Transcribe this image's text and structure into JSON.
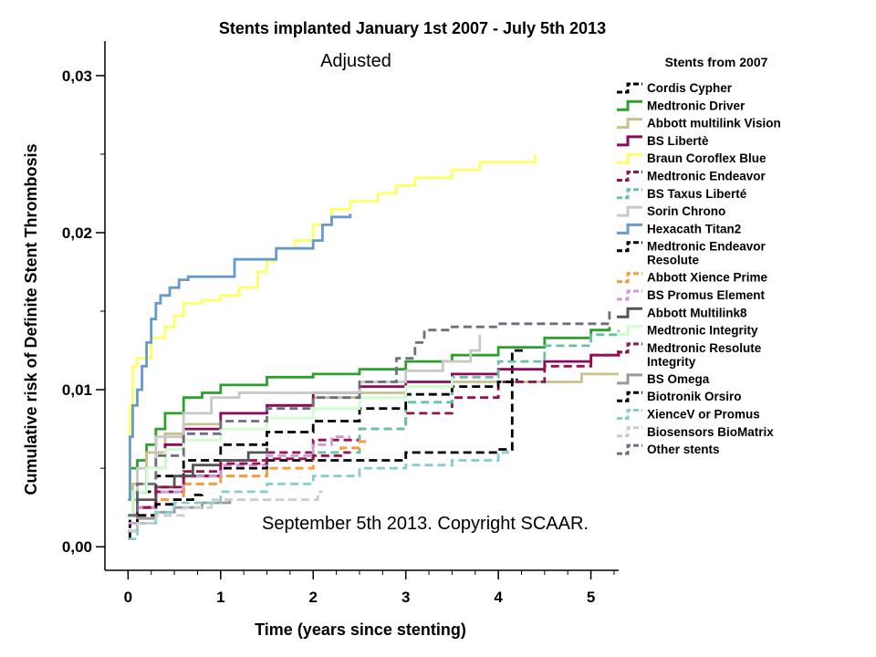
{
  "chart_data": {
    "type": "line",
    "title": "Stents implanted January 1st 2007 - July 5th 2013",
    "xlabel": "Time (years since stenting)",
    "ylabel": "Cumulative risk of Definite Stent Thrombosis",
    "annotation_top": "Adjusted",
    "annotation_bottom": "September 5th 2013. Copyright SCAAR.",
    "xlim": [
      -0.25,
      5.3
    ],
    "ylim": [
      -0.0015,
      0.0322
    ],
    "x_ticks": [
      {
        "v": 0,
        "label": "0"
      },
      {
        "v": 1,
        "label": "1"
      },
      {
        "v": 2,
        "label": "2"
      },
      {
        "v": 3,
        "label": "3"
      },
      {
        "v": 4,
        "label": "4"
      },
      {
        "v": 5,
        "label": "5"
      }
    ],
    "y_ticks": [
      {
        "v": 0.0,
        "label": "0,00"
      },
      {
        "v": 0.01,
        "label": "0,01"
      },
      {
        "v": 0.02,
        "label": "0,02"
      },
      {
        "v": 0.03,
        "label": "0,03"
      }
    ],
    "x_minor_step": 0.25,
    "y_minor_step": 0.005,
    "legend_title": "Stents from 2007",
    "legend_position": "right",
    "series": [
      {
        "name": "Cordis Cypher",
        "color": "#000000",
        "dash": true,
        "points": [
          [
            0,
            0.0005
          ],
          [
            0.02,
            0.002
          ],
          [
            0.1,
            0.0025
          ],
          [
            0.3,
            0.0035
          ],
          [
            0.6,
            0.0045
          ],
          [
            1,
            0.005
          ],
          [
            1.5,
            0.0055
          ],
          [
            2,
            0.0055
          ],
          [
            2.5,
            0.0055
          ],
          [
            3,
            0.006
          ],
          [
            3.5,
            0.006
          ],
          [
            4,
            0.0062
          ],
          [
            4.15,
            0.0062
          ],
          [
            4.15,
            0.0125
          ],
          [
            4.3,
            0.0125
          ]
        ]
      },
      {
        "name": "Medtronic Driver",
        "color": "#2ca02c",
        "dash": false,
        "points": [
          [
            0,
            0.003
          ],
          [
            0.02,
            0.005
          ],
          [
            0.1,
            0.0055
          ],
          [
            0.2,
            0.0065
          ],
          [
            0.3,
            0.0075
          ],
          [
            0.4,
            0.0085
          ],
          [
            0.6,
            0.0095
          ],
          [
            0.8,
            0.0098
          ],
          [
            1,
            0.0103
          ],
          [
            1.5,
            0.0108
          ],
          [
            2,
            0.011
          ],
          [
            2.5,
            0.0113
          ],
          [
            3,
            0.0118
          ],
          [
            3.5,
            0.0122
          ],
          [
            4,
            0.0127
          ],
          [
            4.5,
            0.0133
          ],
          [
            5,
            0.0138
          ],
          [
            5.2,
            0.014
          ]
        ]
      },
      {
        "name": "Abbott multilink Vision",
        "color": "#c8c08c",
        "dash": false,
        "points": [
          [
            0,
            0.002
          ],
          [
            0.05,
            0.004
          ],
          [
            0.2,
            0.006
          ],
          [
            0.4,
            0.0072
          ],
          [
            0.6,
            0.0078
          ],
          [
            1,
            0.0085
          ],
          [
            1.5,
            0.009
          ],
          [
            2,
            0.0095
          ],
          [
            2.5,
            0.0098
          ],
          [
            3,
            0.0102
          ],
          [
            3.5,
            0.0105
          ],
          [
            4,
            0.0105
          ],
          [
            4.5,
            0.0105
          ],
          [
            4.8,
            0.0105
          ],
          [
            4.9,
            0.011
          ],
          [
            5.3,
            0.011
          ]
        ]
      },
      {
        "name": "BS Libertè",
        "color": "#8b0a5b",
        "dash": false,
        "points": [
          [
            0,
            0.002
          ],
          [
            0.05,
            0.0035
          ],
          [
            0.2,
            0.005
          ],
          [
            0.4,
            0.0065
          ],
          [
            0.6,
            0.0075
          ],
          [
            1,
            0.0085
          ],
          [
            1.5,
            0.009
          ],
          [
            2,
            0.0098
          ],
          [
            2.5,
            0.0102
          ],
          [
            3,
            0.0105
          ],
          [
            3.5,
            0.011
          ],
          [
            4,
            0.0113
          ],
          [
            4.5,
            0.0118
          ],
          [
            5,
            0.0122
          ],
          [
            5.3,
            0.0123
          ]
        ]
      },
      {
        "name": "Braun Coroflex Blue",
        "color": "#ffff66",
        "dash": false,
        "points": [
          [
            0,
            0.0035
          ],
          [
            0.02,
            0.009
          ],
          [
            0.05,
            0.0115
          ],
          [
            0.1,
            0.012
          ],
          [
            0.2,
            0.012
          ],
          [
            0.25,
            0.0133
          ],
          [
            0.4,
            0.014
          ],
          [
            0.5,
            0.0147
          ],
          [
            0.6,
            0.0155
          ],
          [
            0.8,
            0.0157
          ],
          [
            1,
            0.016
          ],
          [
            1.2,
            0.0165
          ],
          [
            1.4,
            0.0175
          ],
          [
            1.5,
            0.0182
          ],
          [
            1.6,
            0.019
          ],
          [
            1.8,
            0.0195
          ],
          [
            2,
            0.0205
          ],
          [
            2.2,
            0.0215
          ],
          [
            2.4,
            0.022
          ],
          [
            2.7,
            0.0225
          ],
          [
            2.9,
            0.023
          ],
          [
            3.1,
            0.0235
          ],
          [
            3.5,
            0.024
          ],
          [
            3.8,
            0.0245
          ],
          [
            4.4,
            0.0245
          ],
          [
            4.4,
            0.025
          ]
        ]
      },
      {
        "name": "Medtronic Endeavor",
        "color": "#990f4f",
        "dash": true,
        "points": [
          [
            0,
            0.001
          ],
          [
            0.1,
            0.0025
          ],
          [
            0.3,
            0.0035
          ],
          [
            0.6,
            0.0045
          ],
          [
            1,
            0.0055
          ],
          [
            1.5,
            0.006
          ],
          [
            2,
            0.0068
          ],
          [
            2.5,
            0.0075
          ],
          [
            3,
            0.0085
          ],
          [
            3.5,
            0.0095
          ],
          [
            4,
            0.0105
          ],
          [
            4.5,
            0.0115
          ],
          [
            5,
            0.0122
          ],
          [
            5.3,
            0.0125
          ]
        ]
      },
      {
        "name": "BS Taxus Liberté",
        "color": "#66c2a5",
        "dash": true,
        "points": [
          [
            0,
            0.001
          ],
          [
            0.1,
            0.002
          ],
          [
            0.3,
            0.003
          ],
          [
            0.6,
            0.004
          ],
          [
            1,
            0.0045
          ],
          [
            1.5,
            0.005
          ],
          [
            2,
            0.006
          ],
          [
            2.5,
            0.0075
          ],
          [
            3,
            0.0092
          ],
          [
            3.5,
            0.0108
          ],
          [
            4,
            0.0118
          ],
          [
            4.5,
            0.0128
          ],
          [
            5,
            0.0135
          ],
          [
            5.3,
            0.0138
          ]
        ]
      },
      {
        "name": "Sorin Chrono",
        "color": "#c8c8c8",
        "dash": false,
        "points": [
          [
            0,
            0.003
          ],
          [
            0.1,
            0.005
          ],
          [
            0.3,
            0.007
          ],
          [
            0.6,
            0.0085
          ],
          [
            0.9,
            0.0095
          ],
          [
            1.2,
            0.0098
          ],
          [
            1.5,
            0.0098
          ],
          [
            2,
            0.0098
          ],
          [
            2.5,
            0.0105
          ],
          [
            3,
            0.0112
          ],
          [
            3.4,
            0.0118
          ],
          [
            3.7,
            0.0125
          ],
          [
            3.8,
            0.0135
          ]
        ]
      },
      {
        "name": "Hexacath Titan2",
        "color": "#6699cc",
        "dash": false,
        "points": [
          [
            0,
            0.003
          ],
          [
            0.02,
            0.007
          ],
          [
            0.05,
            0.009
          ],
          [
            0.1,
            0.01
          ],
          [
            0.15,
            0.0115
          ],
          [
            0.2,
            0.013
          ],
          [
            0.25,
            0.0145
          ],
          [
            0.3,
            0.0155
          ],
          [
            0.35,
            0.016
          ],
          [
            0.45,
            0.0165
          ],
          [
            0.55,
            0.017
          ],
          [
            0.65,
            0.0172
          ],
          [
            1,
            0.0172
          ],
          [
            1.15,
            0.0172
          ],
          [
            1.15,
            0.0183
          ],
          [
            1.5,
            0.0183
          ],
          [
            1.6,
            0.019
          ],
          [
            1.9,
            0.019
          ],
          [
            2,
            0.0195
          ],
          [
            2.1,
            0.0205
          ],
          [
            2.2,
            0.021
          ],
          [
            2.4,
            0.0212
          ]
        ]
      },
      {
        "name": "Medtronic Endeavor Resolute",
        "color": "#000000",
        "dash": true,
        "points": [
          [
            0,
            0.002
          ],
          [
            0.1,
            0.0035
          ],
          [
            0.3,
            0.0045
          ],
          [
            0.6,
            0.0055
          ],
          [
            1,
            0.0065
          ],
          [
            1.5,
            0.0073
          ],
          [
            2,
            0.008
          ],
          [
            2.5,
            0.0088
          ],
          [
            3,
            0.0097
          ],
          [
            3.5,
            0.0102
          ],
          [
            4,
            0.0105
          ],
          [
            4.2,
            0.0107
          ]
        ]
      },
      {
        "name": "Abbott Xience Prime",
        "color": "#ff9933",
        "dash": true,
        "points": [
          [
            0,
            0.001
          ],
          [
            0.1,
            0.002
          ],
          [
            0.3,
            0.003
          ],
          [
            0.6,
            0.004
          ],
          [
            1,
            0.0045
          ],
          [
            1.5,
            0.005
          ],
          [
            2,
            0.0058
          ],
          [
            2.3,
            0.0063
          ],
          [
            2.5,
            0.0067
          ],
          [
            2.6,
            0.0068
          ]
        ]
      },
      {
        "name": "BS Promus Element",
        "color": "#cc99dd",
        "dash": true,
        "points": [
          [
            0,
            0.0015
          ],
          [
            0.1,
            0.0025
          ],
          [
            0.3,
            0.0035
          ],
          [
            0.6,
            0.0045
          ],
          [
            1,
            0.0052
          ],
          [
            1.5,
            0.0058
          ],
          [
            2,
            0.0065
          ],
          [
            2.2,
            0.007
          ],
          [
            2.4,
            0.007
          ]
        ]
      },
      {
        "name": "Abbott Multilink8",
        "color": "#555555",
        "dash": false,
        "points": [
          [
            0,
            0.002
          ],
          [
            0.1,
            0.003
          ],
          [
            0.3,
            0.0038
          ],
          [
            0.5,
            0.0045
          ],
          [
            0.7,
            0.0052
          ],
          [
            1,
            0.0055
          ],
          [
            1.3,
            0.006
          ],
          [
            1.5,
            0.0063
          ]
        ]
      },
      {
        "name": "Medtronic Integrity",
        "color": "#ccffcc",
        "dash": false,
        "points": [
          [
            0,
            0.002
          ],
          [
            0.05,
            0.0035
          ],
          [
            0.2,
            0.005
          ],
          [
            0.4,
            0.0062
          ],
          [
            0.6,
            0.0068
          ],
          [
            1,
            0.0075
          ],
          [
            1.5,
            0.0082
          ],
          [
            2,
            0.0088
          ],
          [
            2.5,
            0.0095
          ],
          [
            3,
            0.0102
          ],
          [
            3.5,
            0.0108
          ]
        ]
      },
      {
        "name": "Medtronic Resolute Integrity",
        "color": "#990f4f",
        "dash": true,
        "points": [
          [
            0,
            0.001
          ],
          [
            0.1,
            0.0025
          ],
          [
            0.3,
            0.0038
          ],
          [
            0.6,
            0.0048
          ],
          [
            1,
            0.0053
          ],
          [
            1.5,
            0.0056
          ],
          [
            2,
            0.0058
          ],
          [
            2.3,
            0.006
          ],
          [
            2.4,
            0.006
          ]
        ]
      },
      {
        "name": "BS Omega",
        "color": "#999999",
        "dash": false,
        "points": [
          [
            0,
            0.001
          ],
          [
            0.1,
            0.0018
          ],
          [
            0.3,
            0.0022
          ],
          [
            0.5,
            0.0025
          ],
          [
            0.8,
            0.0028
          ],
          [
            1.1,
            0.003
          ]
        ]
      },
      {
        "name": "Biotronik Orsiro",
        "color": "#000000",
        "dash": true,
        "points": [
          [
            0,
            0.001
          ],
          [
            0.1,
            0.002
          ],
          [
            0.3,
            0.0027
          ],
          [
            0.5,
            0.003
          ],
          [
            0.7,
            0.0033
          ],
          [
            0.8,
            0.0035
          ]
        ]
      },
      {
        "name": "XienceV or Promus",
        "color": "#88cccc",
        "dash": true,
        "points": [
          [
            0,
            0.0005
          ],
          [
            0.1,
            0.0015
          ],
          [
            0.3,
            0.0022
          ],
          [
            0.5,
            0.0028
          ],
          [
            1,
            0.0035
          ],
          [
            1.5,
            0.004
          ],
          [
            2,
            0.0045
          ],
          [
            2.5,
            0.005
          ],
          [
            3,
            0.0052
          ],
          [
            3.5,
            0.0055
          ],
          [
            4,
            0.006
          ],
          [
            4.1,
            0.0062
          ]
        ]
      },
      {
        "name": "Biosensors BioMatrix",
        "color": "#cccccc",
        "dash": true,
        "points": [
          [
            0,
            0.001
          ],
          [
            0.1,
            0.0015
          ],
          [
            0.3,
            0.002
          ],
          [
            0.6,
            0.0025
          ],
          [
            0.9,
            0.003
          ],
          [
            1.2,
            0.003
          ],
          [
            1.5,
            0.003
          ],
          [
            2,
            0.003
          ],
          [
            2.05,
            0.0035
          ],
          [
            2.1,
            0.0035
          ]
        ]
      },
      {
        "name": "Other stents",
        "color": "#6e6e80",
        "dash": true,
        "points": [
          [
            0,
            0.002
          ],
          [
            0.1,
            0.004
          ],
          [
            0.3,
            0.0058
          ],
          [
            0.6,
            0.0072
          ],
          [
            1,
            0.008
          ],
          [
            1.5,
            0.0088
          ],
          [
            2,
            0.0095
          ],
          [
            2.5,
            0.0105
          ],
          [
            2.9,
            0.012
          ],
          [
            3.1,
            0.013
          ],
          [
            3.2,
            0.0138
          ],
          [
            3.5,
            0.014
          ],
          [
            4,
            0.0142
          ],
          [
            4.5,
            0.0142
          ],
          [
            5,
            0.0142
          ],
          [
            5.2,
            0.015
          ]
        ]
      }
    ]
  }
}
